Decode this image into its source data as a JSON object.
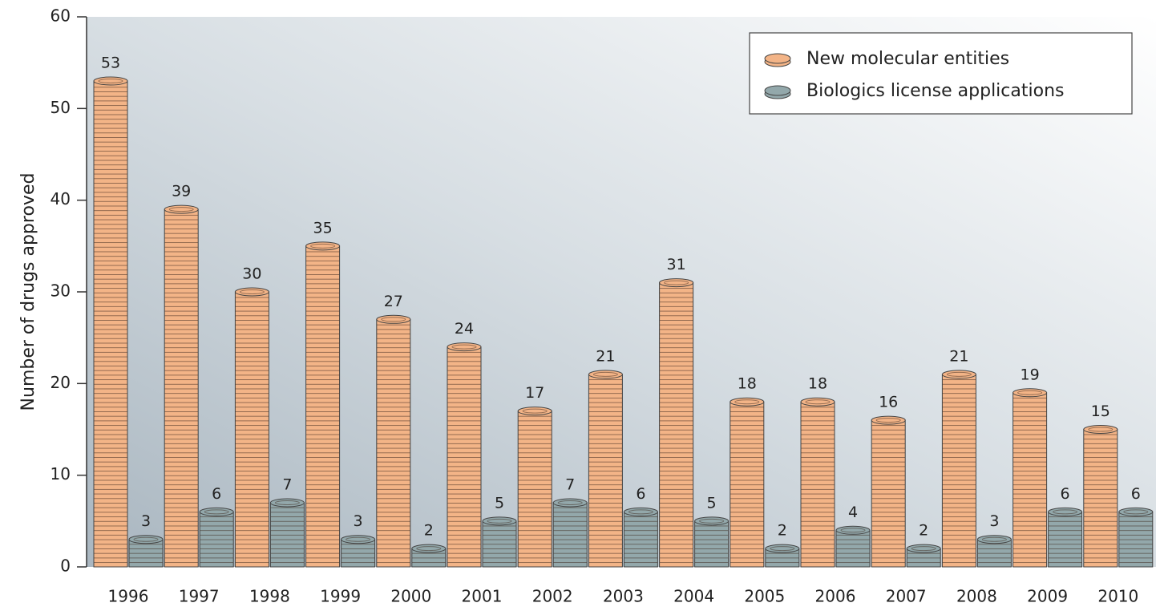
{
  "chart_data": {
    "type": "bar",
    "y_label": "Number of drugs approved",
    "categories": [
      "1996",
      "1997",
      "1998",
      "1999",
      "2000",
      "2001",
      "2002",
      "2003",
      "2004",
      "2005",
      "2006",
      "2007",
      "2008",
      "2009",
      "2010"
    ],
    "series": [
      {
        "name": "New molecular entities",
        "color": "#f3b487",
        "values": [
          53,
          39,
          30,
          35,
          27,
          24,
          17,
          21,
          31,
          18,
          18,
          16,
          21,
          19,
          15
        ]
      },
      {
        "name": "Biologics license applications",
        "color": "#93a8ab",
        "values": [
          3,
          6,
          7,
          3,
          2,
          5,
          7,
          6,
          5,
          2,
          4,
          2,
          3,
          6,
          6
        ]
      }
    ],
    "ylim": [
      0,
      60
    ],
    "yticks": [
      0,
      10,
      20,
      30,
      40,
      50,
      60
    ],
    "legend": "top-right"
  }
}
